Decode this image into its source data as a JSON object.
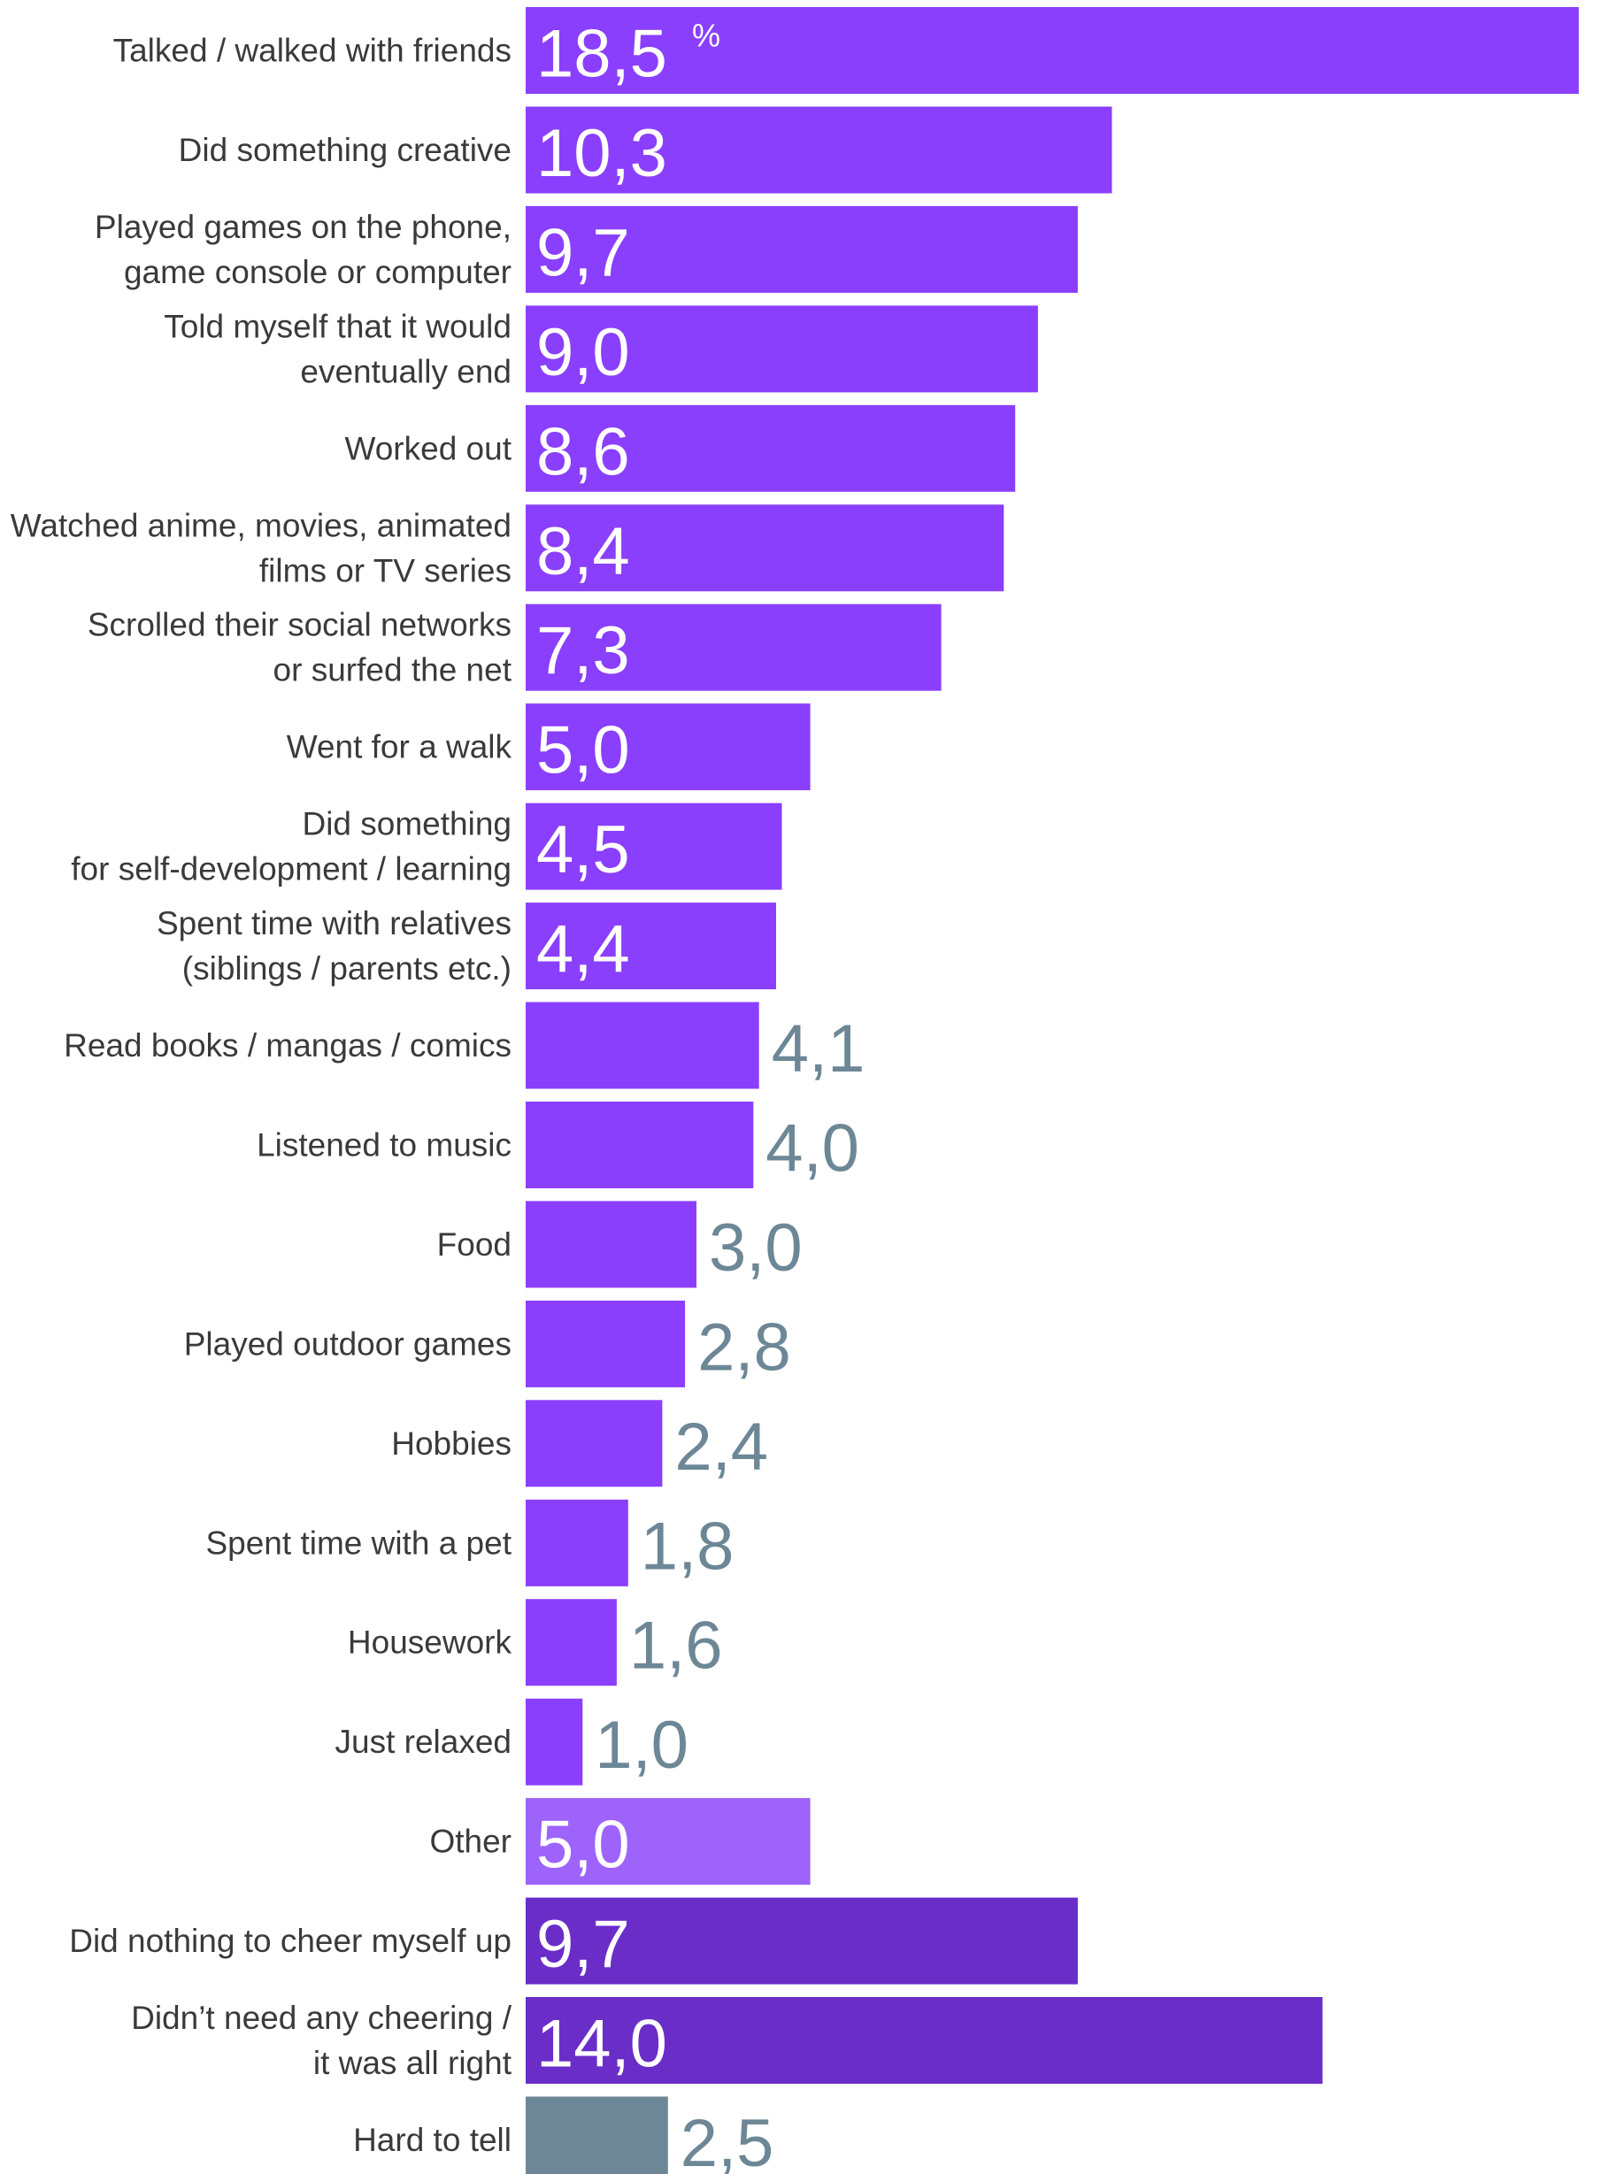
{
  "chart_data": {
    "type": "bar",
    "orientation": "horizontal",
    "unit": "%",
    "xlim": [
      0,
      18.5
    ],
    "grid": false,
    "legend": "none",
    "colors": {
      "main": "#8a3ffc",
      "other": "#9e63fb",
      "nothing": "#6a2dc8",
      "hard_to_tell": "#6d8796",
      "value_inside": "#ffffff",
      "value_outside": "#6d8796",
      "label": "#3a3a3a"
    },
    "bars": [
      {
        "label": [
          "Talked / walked with friends"
        ],
        "display": "18,5",
        "value": 18.5,
        "color": "main",
        "unit_mark": "%"
      },
      {
        "label": [
          "Did something creative"
        ],
        "display": "10,3",
        "value": 10.3,
        "color": "main"
      },
      {
        "label": [
          "Played games on the phone,",
          "game console or computer"
        ],
        "display": "9,7",
        "value": 9.7,
        "color": "main"
      },
      {
        "label": [
          "Told myself that it would",
          "eventually end"
        ],
        "display": "9,0",
        "value": 9.0,
        "color": "main"
      },
      {
        "label": [
          "Worked out"
        ],
        "display": "8,6",
        "value": 8.6,
        "color": "main"
      },
      {
        "label": [
          "Watched anime, movies, animated",
          "films or TV series"
        ],
        "display": "8,4",
        "value": 8.4,
        "color": "main"
      },
      {
        "label": [
          "Scrolled their social networks",
          "or surfed the net"
        ],
        "display": "7,3",
        "value": 7.3,
        "color": "main"
      },
      {
        "label": [
          "Went for a walk"
        ],
        "display": "5,0",
        "value": 5.0,
        "color": "main"
      },
      {
        "label": [
          "Did something",
          "for self-development / learning"
        ],
        "display": "4,5",
        "value": 4.5,
        "color": "main"
      },
      {
        "label": [
          "Spent time with relatives",
          "(siblings / parents etc.)"
        ],
        "display": "4,4",
        "value": 4.4,
        "color": "main"
      },
      {
        "label": [
          "Read books / mangas / comics"
        ],
        "display": "4,1",
        "value": 4.1,
        "color": "main",
        "value_outside": true
      },
      {
        "label": [
          "Listened to music"
        ],
        "display": "4,0",
        "value": 4.0,
        "color": "main",
        "value_outside": true
      },
      {
        "label": [
          "Food"
        ],
        "display": "3,0",
        "value": 3.0,
        "color": "main",
        "value_outside": true
      },
      {
        "label": [
          "Played outdoor games"
        ],
        "display": "2,8",
        "value": 2.8,
        "color": "main",
        "value_outside": true
      },
      {
        "label": [
          "Hobbies"
        ],
        "display": "2,4",
        "value": 2.4,
        "color": "main",
        "value_outside": true
      },
      {
        "label": [
          "Spent time with a pet"
        ],
        "display": "1,8",
        "value": 1.8,
        "color": "main",
        "value_outside": true
      },
      {
        "label": [
          "Housework"
        ],
        "display": "1,6",
        "value": 1.6,
        "color": "main",
        "value_outside": true
      },
      {
        "label": [
          "Just relaxed"
        ],
        "display": "1,0",
        "value": 1.0,
        "color": "main",
        "value_outside": true
      },
      {
        "label": [
          "Other"
        ],
        "display": "5,0",
        "value": 5.0,
        "color": "other"
      },
      {
        "label": [
          "Did nothing to cheer myself up"
        ],
        "display": "9,7",
        "value": 9.7,
        "color": "nothing"
      },
      {
        "label": [
          "Didn’t need any cheering /",
          "it was all right"
        ],
        "display": "14,0",
        "value": 14.0,
        "color": "nothing"
      },
      {
        "label": [
          "Hard to tell"
        ],
        "display": "2,5",
        "value": 2.5,
        "color": "hard_to_tell",
        "value_outside": true
      }
    ]
  }
}
